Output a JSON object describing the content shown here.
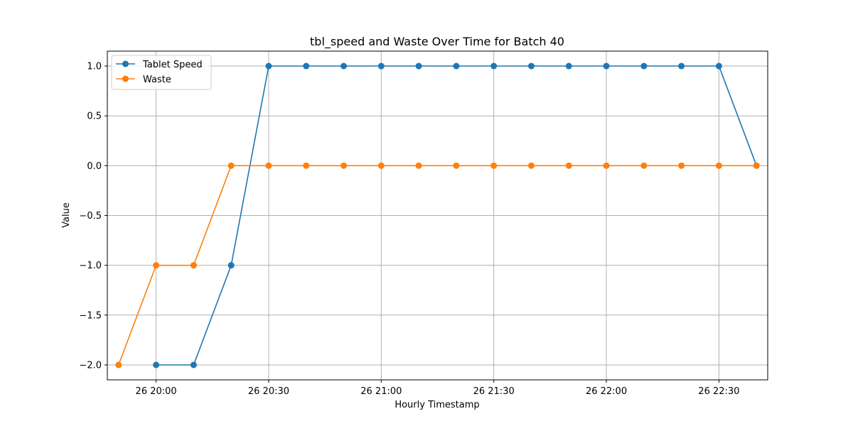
{
  "chart_data": {
    "type": "line",
    "title": "tbl_speed and Waste Over Time for Batch 40",
    "xlabel": "Hourly Timestamp",
    "ylabel": "Value",
    "x": [
      "19:50",
      "20:00",
      "20:10",
      "20:20",
      "20:30",
      "20:40",
      "20:50",
      "21:00",
      "21:10",
      "21:20",
      "21:30",
      "21:40",
      "21:50",
      "22:00",
      "22:10",
      "22:20",
      "22:30",
      "22:40"
    ],
    "x_range": [
      "19:47",
      "22:43"
    ],
    "x_tick_labels": [
      "26 20:00",
      "26 20:30",
      "26 21:00",
      "26 21:30",
      "26 22:00",
      "26 22:30"
    ],
    "x_tick_values": [
      "20:00",
      "20:30",
      "21:00",
      "21:30",
      "22:00",
      "22:30"
    ],
    "ylim": [
      -2.15,
      1.15
    ],
    "y_ticks": [
      -2.0,
      -1.5,
      -1.0,
      -0.5,
      0.0,
      0.5,
      1.0
    ],
    "y_tick_labels": [
      "−2.0",
      "−1.5",
      "−1.0",
      "−0.5",
      "0.0",
      "0.5",
      "1.0"
    ],
    "grid": true,
    "legend_position": "top-left",
    "series": [
      {
        "name": "Tablet Speed",
        "color": "#1f77b4",
        "values": [
          null,
          -2,
          -2,
          -1,
          1,
          1,
          1,
          1,
          1,
          1,
          1,
          1,
          1,
          1,
          1,
          1,
          1,
          0
        ]
      },
      {
        "name": "Waste",
        "color": "#ff7f0e",
        "values": [
          -2,
          -1,
          -1,
          0,
          0,
          0,
          0,
          0,
          0,
          0,
          0,
          0,
          0,
          0,
          0,
          0,
          0,
          0
        ]
      }
    ]
  }
}
